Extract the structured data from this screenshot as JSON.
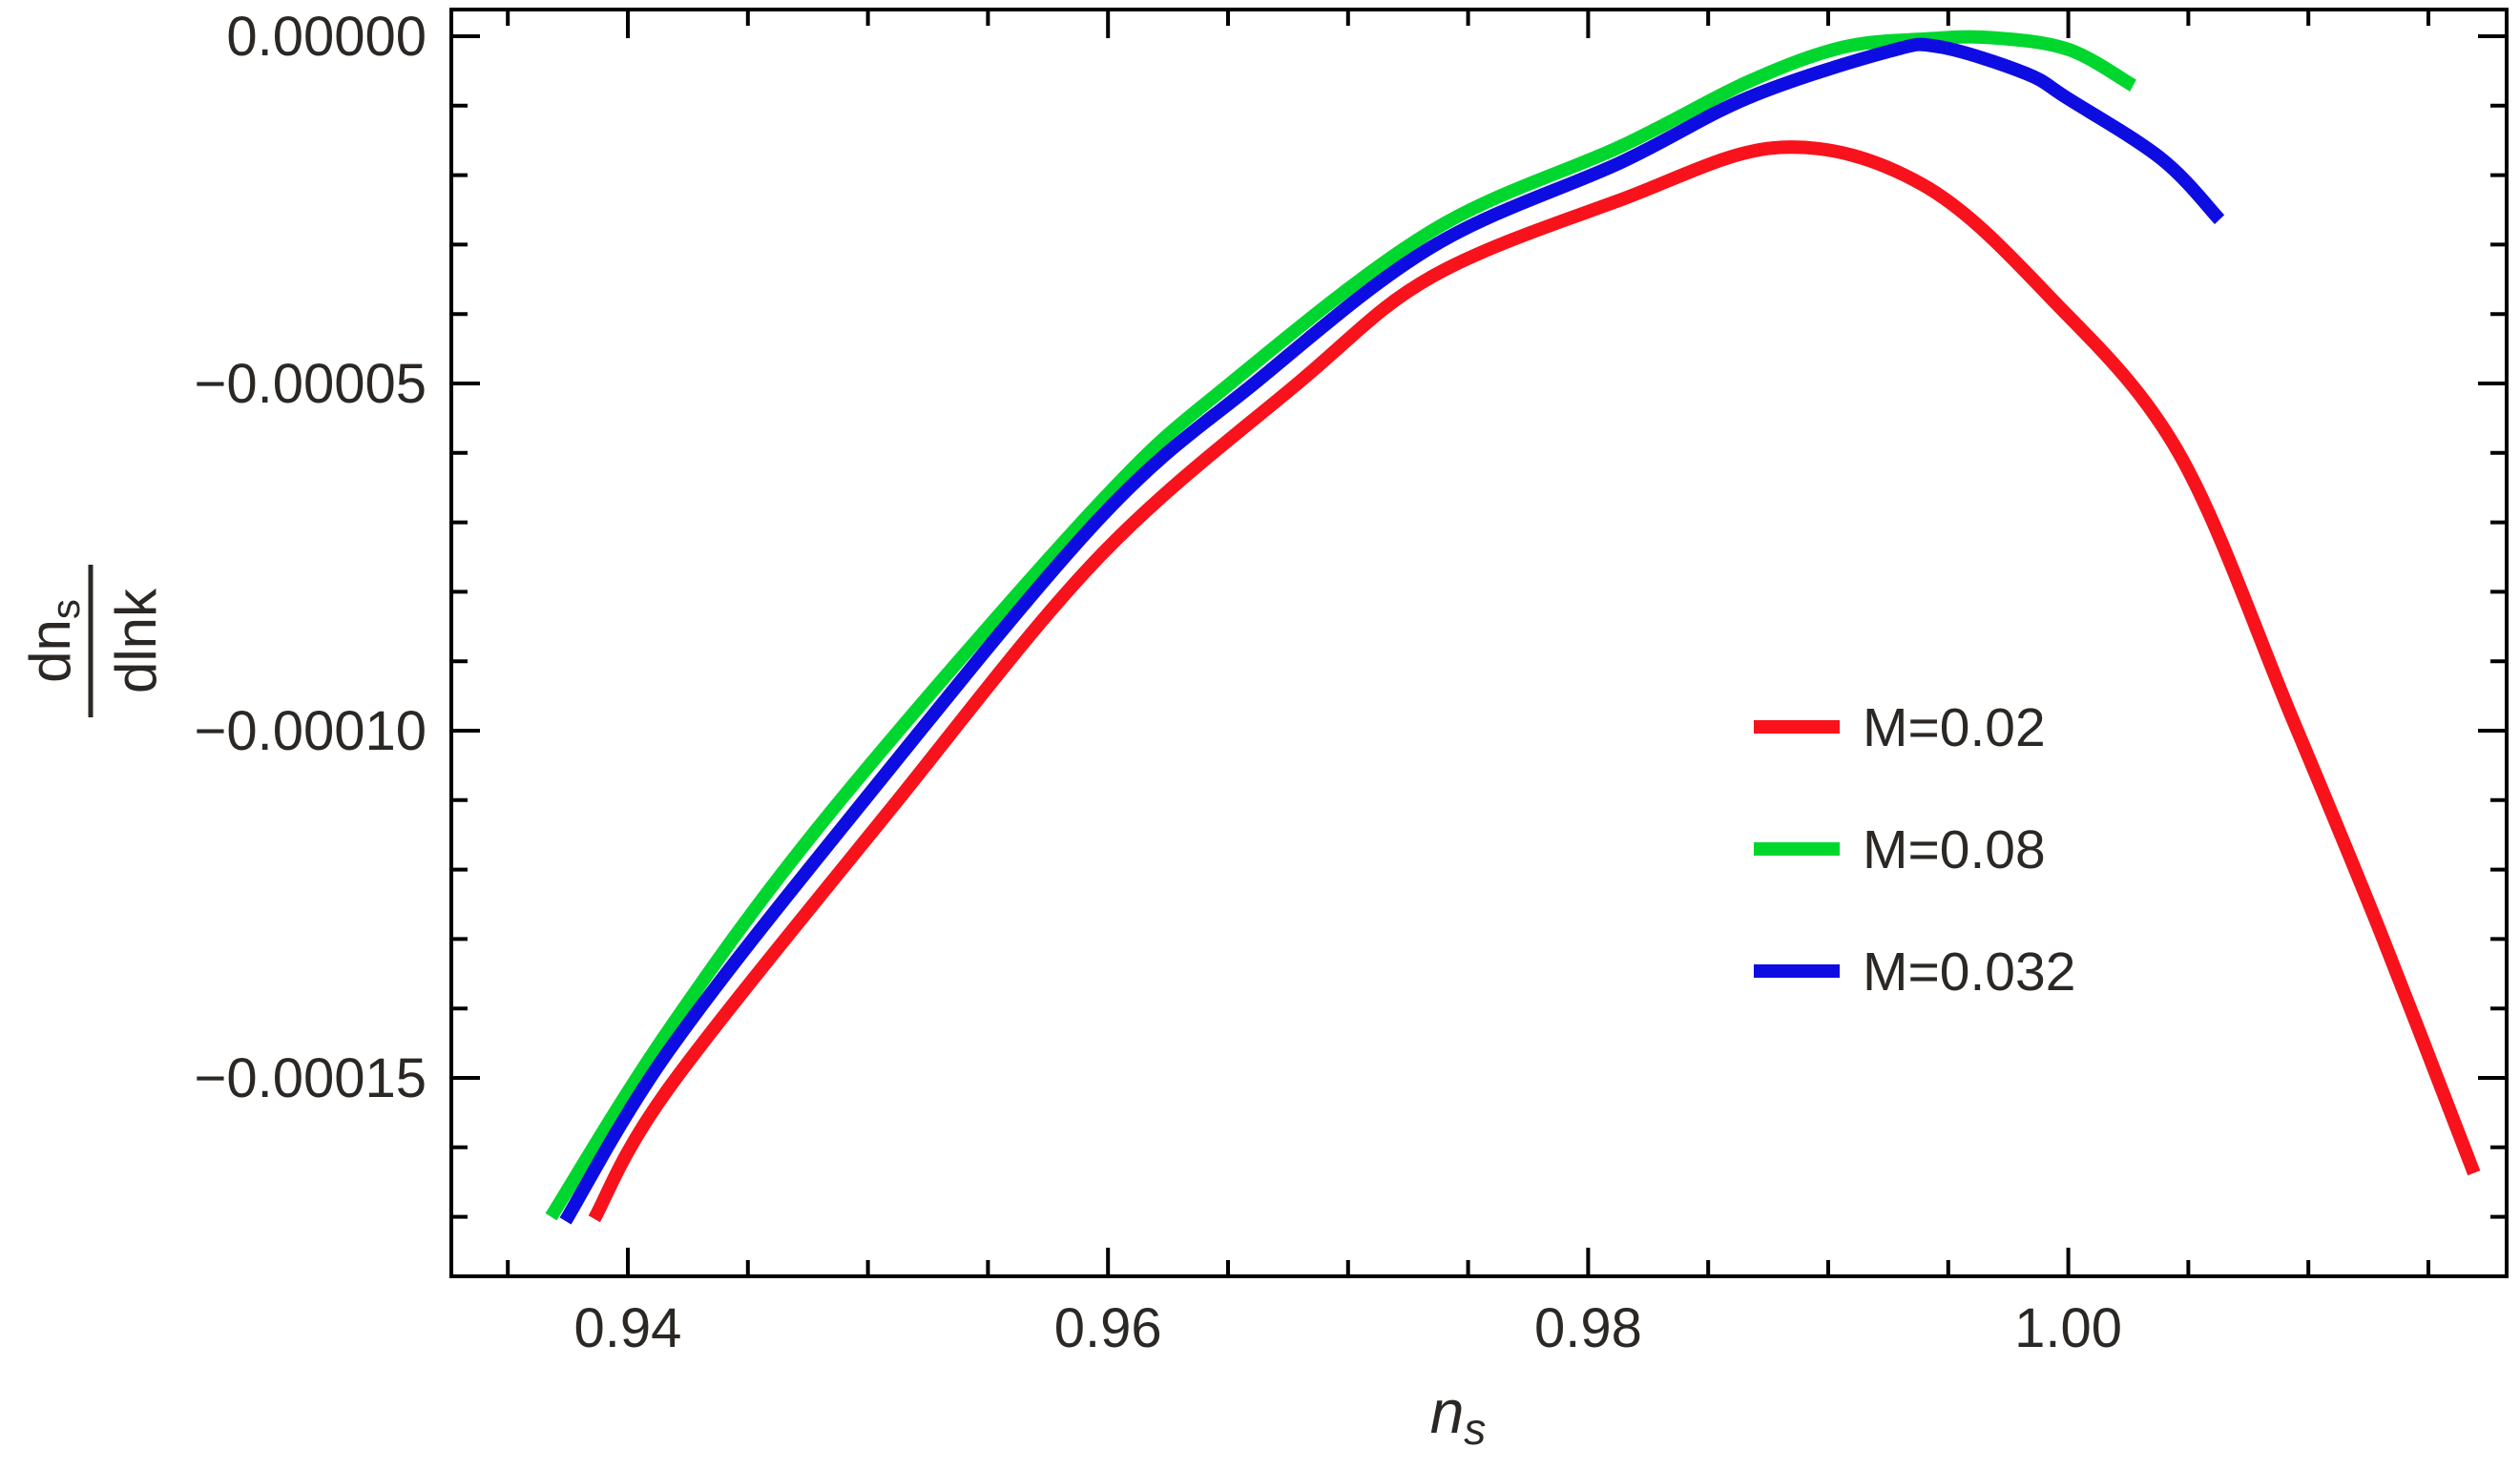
{
  "figure": {
    "background": "#ffffff",
    "text_color": "#2b2724",
    "frame_color": "#000000"
  },
  "axes": {
    "x": {
      "label": "n",
      "label_subscript": "s",
      "range": [
        0.93265,
        1.01826
      ],
      "major_ticks": [
        0.94,
        0.96,
        0.98,
        1.0
      ],
      "major_tick_labels": [
        "0.94",
        "0.96",
        "0.98",
        "1.00"
      ],
      "minor_tick_step": 0.005
    },
    "y": {
      "label_numerator": "dn",
      "label_numerator_subscript": "s",
      "label_denominator": "dlnk",
      "range": [
        -0.0001786,
        3.8e-06
      ],
      "major_ticks": [
        0.0,
        -5e-05,
        -0.0001,
        -0.00015
      ],
      "major_tick_labels": [
        "0.00000",
        "−0.00005",
        "−0.00010",
        "−0.00015"
      ],
      "minor_tick_step": 1e-05
    }
  },
  "legend": {
    "items": [
      {
        "label": "M=0.02",
        "color": "#F8121B",
        "series": "red"
      },
      {
        "label": "M=0.08",
        "color": "#00D72E",
        "series": "green"
      },
      {
        "label": "M=0.032",
        "color": "#0D0DE2",
        "series": "blue"
      }
    ]
  },
  "chart_data": {
    "type": "line",
    "title": "",
    "xlabel": "n_s",
    "ylabel": "dn_s/dlnk",
    "xlim": [
      0.93265,
      1.01826
    ],
    "ylim": [
      -0.0001786,
      3.8e-06
    ],
    "grid": false,
    "legend_position": "middle-right",
    "series": [
      {
        "name": "M=0.02",
        "color": "#F8121B",
        "points": [
          [
            0.9386,
            -0.0001703
          ],
          [
            0.9417,
            -0.0001515
          ],
          [
            0.9509,
            -0.0001115
          ],
          [
            0.9596,
            -7.51e-05
          ],
          [
            0.968,
            -4.97e-05
          ],
          [
            0.9735,
            -3.46e-05
          ],
          [
            0.9814,
            -2.35e-05
          ],
          [
            0.988,
            -1.6e-05
          ],
          [
            0.9939,
            -2.13e-05
          ],
          [
            0.9993,
            -3.78e-05
          ],
          [
            1.0046,
            -6e-05
          ],
          [
            1.0093,
            -9.8e-05
          ],
          [
            1.013,
            -0.000129
          ],
          [
            1.0169,
            -0.0001637
          ]
        ]
      },
      {
        "name": "M=0.08",
        "color": "#00D72E",
        "points": [
          [
            0.9368,
            -0.00017
          ],
          [
            0.9417,
            -0.0001431
          ],
          [
            0.9485,
            -0.0001115
          ],
          [
            0.9596,
            -6.74e-05
          ],
          [
            0.9652,
            -4.97e-05
          ],
          [
            0.9735,
            -2.8e-05
          ],
          [
            0.9814,
            -1.58e-05
          ],
          [
            0.9867,
            -6.5e-06
          ],
          [
            0.9906,
            -1.6e-06
          ],
          [
            0.994,
            -4e-07
          ],
          [
            0.9968,
            -2e-07
          ],
          [
            1.0,
            -1.9e-06
          ],
          [
            1.0027,
            -7.1e-06
          ]
        ]
      },
      {
        "name": "M=0.032",
        "color": "#0D0DE2",
        "points": [
          [
            0.9374,
            -0.0001706
          ],
          [
            0.9417,
            -0.0001461
          ],
          [
            0.9495,
            -0.0001115
          ],
          [
            0.9596,
            -6.96e-05
          ],
          [
            0.9662,
            -4.97e-05
          ],
          [
            0.9735,
            -3.03e-05
          ],
          [
            0.9814,
            -1.81e-05
          ],
          [
            0.9867,
            -8.8e-06
          ],
          [
            0.9925,
            -2.2e-06
          ],
          [
            0.9946,
            -1.5e-06
          ],
          [
            0.9982,
            -5.3e-06
          ],
          [
            1.0,
            -9e-06
          ],
          [
            1.0039,
            -1.77e-05
          ],
          [
            1.0063,
            -2.64e-05
          ]
        ]
      }
    ]
  }
}
